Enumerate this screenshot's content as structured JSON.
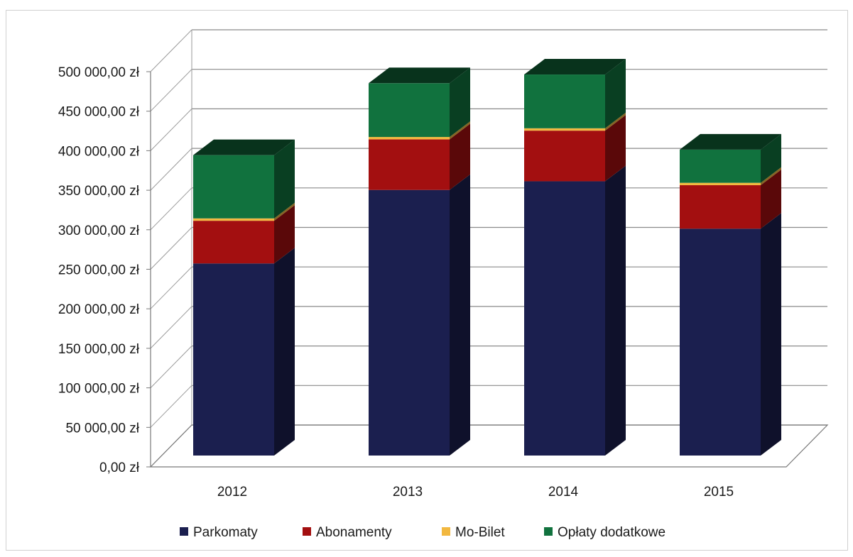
{
  "chart_data": {
    "type": "bar",
    "stacked": true,
    "three_d": true,
    "title": "",
    "xlabel": "",
    "ylabel": "",
    "categories": [
      "2012",
      "2013",
      "2014",
      "2015"
    ],
    "ylim": [
      0,
      500000
    ],
    "y_tick_values": [
      0,
      50000,
      100000,
      150000,
      200000,
      250000,
      300000,
      350000,
      400000,
      450000,
      500000
    ],
    "y_tick_labels": [
      "0,00 zł",
      "50 000,00 zł",
      "100 000,00 zł",
      "150 000,00 zł",
      "200 000,00 zł",
      "250 000,00 zł",
      "300 000,00 zł",
      "350 000,00 zł",
      "400 000,00 zł",
      "450 000,00 zł",
      "500 000,00 zł"
    ],
    "grid": true,
    "legend_position": "bottom",
    "series": [
      {
        "name": "Parkomaty",
        "color": "#1b1f4f",
        "values": [
          243000,
          336000,
          347000,
          287000
        ]
      },
      {
        "name": "Abonamenty",
        "color": "#a30f10",
        "values": [
          54000,
          64000,
          64000,
          55000
        ]
      },
      {
        "name": "Mo-Bilet",
        "color": "#f2b840",
        "values": [
          3000,
          3000,
          3000,
          3000
        ]
      },
      {
        "name": "Opłaty dodatkowe",
        "color": "#11723e",
        "values": [
          80000,
          68000,
          68000,
          42000
        ]
      }
    ]
  }
}
